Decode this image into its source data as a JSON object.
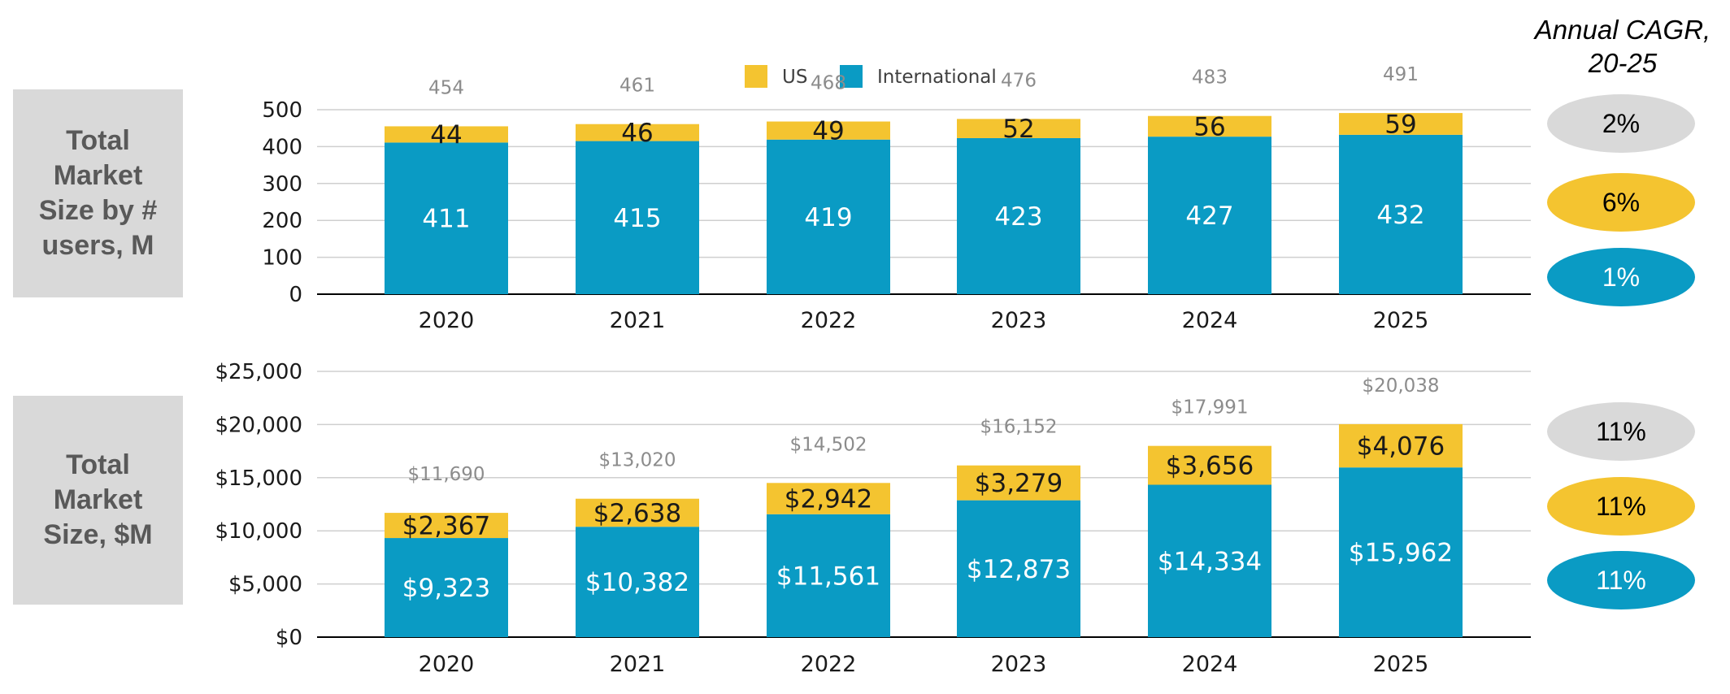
{
  "colors": {
    "us": "#f4c430",
    "international": "#0a9bc4",
    "grey": "#d9d9d9"
  },
  "legend": {
    "us": "US",
    "international": "International"
  },
  "row_labels": {
    "users": [
      "Total",
      "Market",
      "Size by #",
      "users, M"
    ],
    "size": [
      "Total",
      "Market",
      "Size, $M"
    ]
  },
  "cagr": {
    "title": [
      "Annual CAGR,",
      "20-25"
    ],
    "users": [
      {
        "value": "2%",
        "color": "#d9d9d9",
        "text_color": "#000000"
      },
      {
        "value": "6%",
        "color": "#f4c430",
        "text_color": "#000000"
      },
      {
        "value": "1%",
        "color": "#0a9bc4",
        "text_color": "#ffffff"
      }
    ],
    "size": [
      {
        "value": "11%",
        "color": "#d9d9d9",
        "text_color": "#000000"
      },
      {
        "value": "11%",
        "color": "#f4c430",
        "text_color": "#000000"
      },
      {
        "value": "11%",
        "color": "#0a9bc4",
        "text_color": "#ffffff"
      }
    ]
  },
  "chart_data": [
    {
      "type": "bar",
      "stacked": true,
      "categories": [
        "2020",
        "2021",
        "2022",
        "2023",
        "2024",
        "2025"
      ],
      "series": [
        {
          "name": "International",
          "values": [
            411,
            415,
            419,
            423,
            427,
            432
          ],
          "labels": [
            "411",
            "415",
            "419",
            "423",
            "427",
            "432"
          ]
        },
        {
          "name": "US",
          "values": [
            44,
            46,
            49,
            52,
            56,
            59
          ],
          "labels": [
            "44",
            "46",
            "49",
            "52",
            "56",
            "59"
          ]
        }
      ],
      "totals": [
        "454",
        "461",
        "468",
        "476",
        "483",
        "491"
      ],
      "ylim": [
        0,
        500
      ],
      "yticks": [
        0,
        100,
        200,
        300,
        400,
        500
      ],
      "ytick_labels": [
        "0",
        "100",
        "200",
        "300",
        "400",
        "500"
      ],
      "grid": true,
      "legend": "top-center"
    },
    {
      "type": "bar",
      "stacked": true,
      "categories": [
        "2020",
        "2021",
        "2022",
        "2023",
        "2024",
        "2025"
      ],
      "series": [
        {
          "name": "International",
          "values": [
            9323,
            10382,
            11561,
            12873,
            14334,
            15962
          ],
          "labels": [
            "$9,323",
            "$10,382",
            "$11,561",
            "$12,873",
            "$14,334",
            "$15,962"
          ]
        },
        {
          "name": "US",
          "values": [
            2367,
            2638,
            2942,
            3279,
            3656,
            4076
          ],
          "labels": [
            "$2,367",
            "$2,638",
            "$2,942",
            "$3,279",
            "$3,656",
            "$4,076"
          ]
        }
      ],
      "totals": [
        "$11,690",
        "$13,020",
        "$14,502",
        "$16,152",
        "$17,991",
        "$20,038"
      ],
      "ylim": [
        0,
        25000
      ],
      "yticks": [
        0,
        5000,
        10000,
        15000,
        20000,
        25000
      ],
      "ytick_labels": [
        "$0",
        "$5,000",
        "$10,000",
        "$15,000",
        "$20,000",
        "$25,000"
      ],
      "grid": true
    }
  ]
}
